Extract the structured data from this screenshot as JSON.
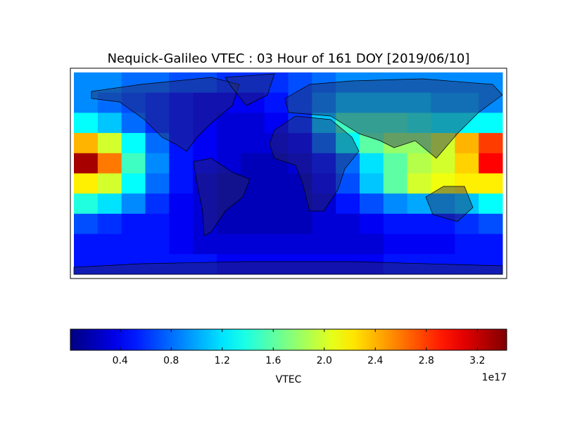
{
  "chart_data": {
    "type": "heatmap",
    "title": "Nequick-Galileo VTEC : 03 Hour of 161 DOY [2019/06/10]",
    "colormap": "jet",
    "values": [
      [
        0.9,
        0.9,
        0.8,
        0.8,
        0.7,
        0.7,
        0.6,
        0.6,
        0.6,
        0.7,
        0.8,
        0.9,
        0.9,
        0.9,
        0.9,
        0.9,
        0.9,
        0.9
      ],
      [
        0.9,
        0.8,
        0.7,
        0.6,
        0.5,
        0.4,
        0.4,
        0.4,
        0.5,
        0.7,
        0.9,
        1.1,
        1.1,
        1.1,
        1.1,
        1.0,
        1.0,
        0.9
      ],
      [
        1.3,
        1.1,
        0.8,
        0.6,
        0.5,
        0.4,
        0.3,
        0.3,
        0.4,
        0.6,
        1.1,
        1.5,
        1.5,
        1.5,
        1.4,
        1.3,
        1.3,
        1.3
      ],
      [
        2.4,
        2.0,
        1.3,
        0.8,
        0.5,
        0.4,
        0.3,
        0.3,
        0.3,
        0.4,
        0.8,
        1.3,
        1.6,
        1.8,
        1.8,
        2.0,
        2.4,
        2.8
      ],
      [
        3.3,
        2.6,
        1.5,
        0.9,
        0.5,
        0.4,
        0.3,
        0.2,
        0.2,
        0.3,
        0.5,
        0.8,
        1.2,
        1.6,
        1.9,
        2.0,
        2.3,
        3.0
      ],
      [
        2.2,
        2.0,
        1.3,
        0.8,
        0.5,
        0.3,
        0.2,
        0.2,
        0.2,
        0.2,
        0.4,
        0.7,
        1.1,
        1.6,
        2.0,
        2.1,
        2.2,
        2.2
      ],
      [
        1.4,
        1.2,
        0.9,
        0.6,
        0.4,
        0.3,
        0.2,
        0.2,
        0.2,
        0.2,
        0.3,
        0.5,
        0.7,
        0.9,
        1.0,
        1.0,
        1.1,
        1.3
      ],
      [
        0.7,
        0.6,
        0.5,
        0.5,
        0.4,
        0.3,
        0.2,
        0.2,
        0.2,
        0.2,
        0.3,
        0.3,
        0.4,
        0.5,
        0.5,
        0.5,
        0.6,
        0.7
      ],
      [
        0.5,
        0.5,
        0.5,
        0.5,
        0.4,
        0.3,
        0.3,
        0.3,
        0.3,
        0.3,
        0.3,
        0.3,
        0.3,
        0.4,
        0.4,
        0.4,
        0.5,
        0.5
      ],
      [
        0.5,
        0.5,
        0.5,
        0.5,
        0.5,
        0.5,
        0.4,
        0.4,
        0.4,
        0.4,
        0.4,
        0.4,
        0.4,
        0.5,
        0.5,
        0.5,
        0.5,
        0.5
      ]
    ],
    "clim": [
      0.01,
      3.43
    ],
    "cticks": [
      0.4,
      0.8,
      1.2,
      1.6,
      {
        "value": 2,
        "label": "2.0"
      },
      2.4,
      2.8,
      3.2
    ],
    "colorbar_label": "VTEC",
    "offset_label": "1e17"
  }
}
